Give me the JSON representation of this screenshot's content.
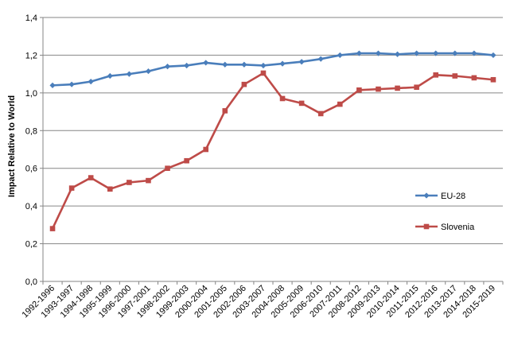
{
  "chart_data": {
    "type": "line",
    "title": "",
    "xlabel": "",
    "ylabel": "Impact Relative to World",
    "ylim": [
      0,
      1.4
    ],
    "yticks": [
      "0,0",
      "0,2",
      "0,4",
      "0,6",
      "0,8",
      "1,0",
      "1,2",
      "1,4"
    ],
    "grid": true,
    "legend_position": "right",
    "categories": [
      "1992-1996",
      "1993-1997",
      "1994-1998",
      "1995-1999",
      "1996-2000",
      "1997-2001",
      "1998-2002",
      "1999-2003",
      "2000-2004",
      "2001-2005",
      "2002-2006",
      "2003-2007",
      "2004-2008",
      "2005-2009",
      "2006-2010",
      "2007-2011",
      "2008-2012",
      "2009-2013",
      "2010-2014",
      "2011-2015",
      "2012-2016",
      "2013-2017",
      "2014-2018",
      "2015-2019"
    ],
    "series": [
      {
        "name": "EU-28",
        "color": "#4A7EBB",
        "marker": "diamond",
        "values": [
          1.04,
          1.045,
          1.06,
          1.09,
          1.1,
          1.115,
          1.14,
          1.145,
          1.16,
          1.15,
          1.15,
          1.145,
          1.155,
          1.165,
          1.18,
          1.2,
          1.21,
          1.21,
          1.205,
          1.21,
          1.21,
          1.21,
          1.21,
          1.2
        ]
      },
      {
        "name": "Slovenia",
        "color": "#BE4B48",
        "marker": "square",
        "values": [
          0.28,
          0.495,
          0.55,
          0.49,
          0.525,
          0.535,
          0.6,
          0.64,
          0.7,
          0.905,
          1.045,
          1.105,
          0.97,
          0.945,
          0.89,
          0.94,
          1.015,
          1.02,
          1.025,
          1.03,
          1.095,
          1.09,
          1.08,
          1.07
        ]
      }
    ]
  }
}
